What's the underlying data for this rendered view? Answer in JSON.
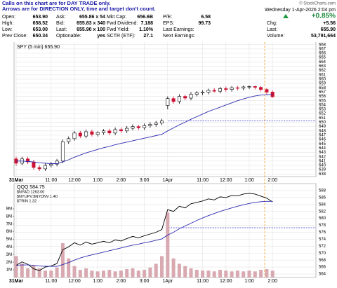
{
  "header": {
    "notice": [
      "Calls on this chart are for DAY TRADE only.",
      "Arrows are for DIRECTION ONLY, time and target don't count."
    ],
    "credit": "© StockCharts.com",
    "datetime": "Wednesday  1-Apr-2026  2:04 pm"
  },
  "quote": {
    "rows": [
      [
        "Open:",
        "653.90",
        "Ask:",
        "655.86 x 54",
        "Mkt Cap:",
        "656.6B",
        "P/E:",
        "6.58"
      ],
      [
        "High:",
        "658.52",
        "Bid:",
        "655.83 x 340",
        "Fwd Dividend:",
        "7.188",
        "EPS:",
        "99.73"
      ],
      [
        "Low:",
        "653.00",
        "Last:",
        "655.90 x 100",
        "Fwd Yield:",
        "1.10%",
        "Last Earnings:",
        ""
      ],
      [
        "Prev Close:",
        "650.34",
        "Optionable:",
        "yes",
        "SCTR (ETF):",
        "27.1",
        "Next Earnings:",
        ""
      ]
    ],
    "change_pct": "+0.85%",
    "side": [
      [
        "Chg:",
        "+5.56"
      ],
      [
        "Last:",
        "655.90"
      ],
      [
        "Volume:",
        "53,791,664"
      ]
    ]
  },
  "chart_data": [
    {
      "type": "candlestick",
      "label": "SPY (5 min) 655.90",
      "categories": [
        "31Mar",
        null,
        null,
        null,
        null,
        null,
        "11:00",
        null,
        null,
        null,
        "12:00",
        null,
        null,
        null,
        "1:00",
        null,
        null,
        null,
        "2:00",
        null,
        null,
        null,
        "3:00",
        null,
        null,
        null,
        "1Apr",
        null,
        null,
        null,
        null,
        null,
        "11:00",
        null,
        null,
        null,
        "12:00",
        null,
        null,
        null,
        "1:00",
        null,
        null,
        null,
        "2:00"
      ],
      "open": [
        641.5,
        640.5,
        641.5,
        640.8,
        639.5,
        639.2,
        640.0,
        640.3,
        641.0,
        645.5,
        646.2,
        647.5,
        646.8,
        647.8,
        647.2,
        647.6,
        648.0,
        647.5,
        648.3,
        648.0,
        648.6,
        649.0,
        648.7,
        649.2,
        649.5,
        649.8,
        653.9,
        655.5,
        654.8,
        656.0,
        655.6,
        656.5,
        656.8,
        657.0,
        657.4,
        657.2,
        657.8,
        657.6,
        658.0,
        657.9,
        658.2,
        658.3,
        658.1,
        657.6,
        657.0
      ],
      "high": [
        642.0,
        642.0,
        642.0,
        641.3,
        640.0,
        640.5,
        640.8,
        641.5,
        646.0,
        646.7,
        648.0,
        648.0,
        648.3,
        648.3,
        647.9,
        648.4,
        648.5,
        648.8,
        648.8,
        649.1,
        649.5,
        649.4,
        649.7,
        650.0,
        650.3,
        650.8,
        656.0,
        656.0,
        656.5,
        656.4,
        657.0,
        657.2,
        657.4,
        657.8,
        657.9,
        658.2,
        658.3,
        658.4,
        658.4,
        658.5,
        658.52,
        658.5,
        658.4,
        657.9,
        657.4
      ],
      "low": [
        639.9,
        640.0,
        640.3,
        639.0,
        638.7,
        638.7,
        639.5,
        639.8,
        640.5,
        645.0,
        645.7,
        646.3,
        646.3,
        646.7,
        646.7,
        647.1,
        647.0,
        647.0,
        647.5,
        647.5,
        648.1,
        648.2,
        648.2,
        648.7,
        649.0,
        649.3,
        653.0,
        654.3,
        654.3,
        655.1,
        655.1,
        656.0,
        656.3,
        656.5,
        656.9,
        656.7,
        657.1,
        657.1,
        657.4,
        657.4,
        657.7,
        657.6,
        657.1,
        656.5,
        655.7
      ],
      "close": [
        640.5,
        641.5,
        640.8,
        639.5,
        639.2,
        640.0,
        640.3,
        641.0,
        645.5,
        646.2,
        647.5,
        646.8,
        647.8,
        647.2,
        647.6,
        648.0,
        647.5,
        648.3,
        648.0,
        648.6,
        649.0,
        648.7,
        649.2,
        649.5,
        649.8,
        650.3,
        655.5,
        654.8,
        656.0,
        655.6,
        656.5,
        656.8,
        657.0,
        657.4,
        657.2,
        657.8,
        657.6,
        658.0,
        657.9,
        658.2,
        658.3,
        658.1,
        657.6,
        657.0,
        655.9
      ],
      "up_color": "#000000",
      "down_color": "#cc1133",
      "ma": {
        "color": "#2b2bb0",
        "values": [
          641.0,
          641.0,
          640.9,
          640.8,
          640.6,
          640.5,
          640.4,
          640.4,
          640.8,
          641.3,
          641.9,
          642.4,
          642.9,
          643.3,
          643.7,
          644.1,
          644.4,
          644.8,
          645.1,
          645.4,
          645.7,
          646.0,
          646.3,
          646.6,
          646.9,
          647.2,
          648.0,
          648.7,
          649.4,
          650.0,
          650.7,
          651.3,
          651.9,
          652.5,
          653.0,
          653.5,
          654.0,
          654.5,
          655.0,
          655.4,
          655.8,
          656.1,
          656.3,
          656.4,
          656.4
        ]
      },
      "hline": 650.34,
      "hline_color": "#3333cc",
      "ylim": [
        637.4,
        668.6
      ],
      "yticks": [
        638,
        639,
        640,
        641,
        642,
        643,
        644,
        645,
        646,
        647,
        648,
        649,
        650,
        651,
        652,
        653,
        654,
        655,
        656,
        657,
        658,
        659,
        660,
        661,
        662,
        663,
        664,
        665,
        666,
        667,
        668
      ],
      "grid": true
    },
    {
      "type": "line",
      "categories": [
        "31Mar",
        null,
        null,
        null,
        null,
        null,
        "11:00",
        null,
        null,
        null,
        "12:00",
        null,
        null,
        null,
        "1:00",
        null,
        null,
        null,
        "2:00",
        null,
        null,
        null,
        "3:00",
        null,
        null,
        null,
        "1Apr",
        null,
        null,
        null,
        null,
        null,
        "11:00",
        null,
        null,
        null,
        "12:00",
        null,
        null,
        null,
        "1:00",
        null,
        null,
        null,
        "2:00"
      ],
      "labels": [
        "$NYAD 1263.00",
        "$NYUPV:$NYDNV 1.40",
        "$TRIN 1.32"
      ],
      "series": [
        {
          "name": "QQQ 584.75",
          "color": "#000000",
          "values": [
            566.5,
            567.5,
            566.8,
            565.5,
            565.0,
            566.0,
            566.3,
            567.0,
            571.0,
            571.8,
            573.0,
            572.3,
            573.2,
            572.6,
            573.0,
            573.4,
            573.0,
            573.8,
            573.5,
            574.2,
            574.8,
            574.4,
            575.0,
            575.5,
            576.0,
            576.8,
            582.5,
            582.0,
            583.5,
            583.0,
            584.2,
            584.6,
            585.0,
            585.6,
            585.3,
            586.2,
            586.0,
            586.6,
            586.5,
            587.0,
            587.2,
            587.0,
            586.4,
            585.8,
            584.75
          ]
        },
        {
          "color": "#2b2bb0",
          "values": [
            566.5,
            566.6,
            566.6,
            566.5,
            566.3,
            566.2,
            566.2,
            566.2,
            566.7,
            567.3,
            568.0,
            568.6,
            569.1,
            569.5,
            569.9,
            570.3,
            570.7,
            571.1,
            571.5,
            571.9,
            572.3,
            572.6,
            573.0,
            573.3,
            573.7,
            574.1,
            575.2,
            576.0,
            577.0,
            577.8,
            578.6,
            579.4,
            580.1,
            580.8,
            581.4,
            582.0,
            582.5,
            583.0,
            583.5,
            583.9,
            584.3,
            584.6,
            584.8,
            584.9,
            584.9
          ]
        },
        {
          "type": "bar",
          "axis": "y2",
          "color": "#d8a9b0",
          "values": [
            2800000,
            1800000,
            1200000,
            1600000,
            1200000,
            900000,
            900000,
            1300000,
            4500000,
            2500000,
            1500000,
            1000000,
            1200000,
            900000,
            800000,
            900000,
            1000000,
            800000,
            900000,
            1100000,
            1200000,
            900000,
            1000000,
            1300000,
            1800000,
            2800000,
            8500000,
            2500000,
            1800000,
            1500000,
            1200000,
            1000000,
            900000,
            900000,
            800000,
            1000000,
            900000,
            800000,
            900000,
            800000,
            900000,
            800000,
            1000000,
            1100000,
            900000
          ]
        }
      ],
      "hline": 577.3,
      "hline_color": "#3333cc",
      "ylim": [
        563,
        590
      ],
      "yticks": [
        564,
        566,
        568,
        570,
        572,
        574,
        576,
        578,
        580,
        582,
        584,
        586,
        588
      ],
      "y2lim": [
        0,
        12300000
      ],
      "y2ticks": [
        {
          "value": 1000000,
          "label": "1M"
        },
        {
          "value": 2000000,
          "label": "2M"
        },
        {
          "value": 3000000,
          "label": "3M"
        },
        {
          "value": 4000000,
          "label": "4M"
        },
        {
          "value": 5000000,
          "label": "5M"
        },
        {
          "value": 6000000,
          "label": "6M"
        },
        {
          "value": 7000000,
          "label": "7M"
        },
        {
          "value": 8000000,
          "label": "8M"
        },
        {
          "value": 9000000,
          "label": "9M"
        }
      ],
      "grid": true
    }
  ]
}
